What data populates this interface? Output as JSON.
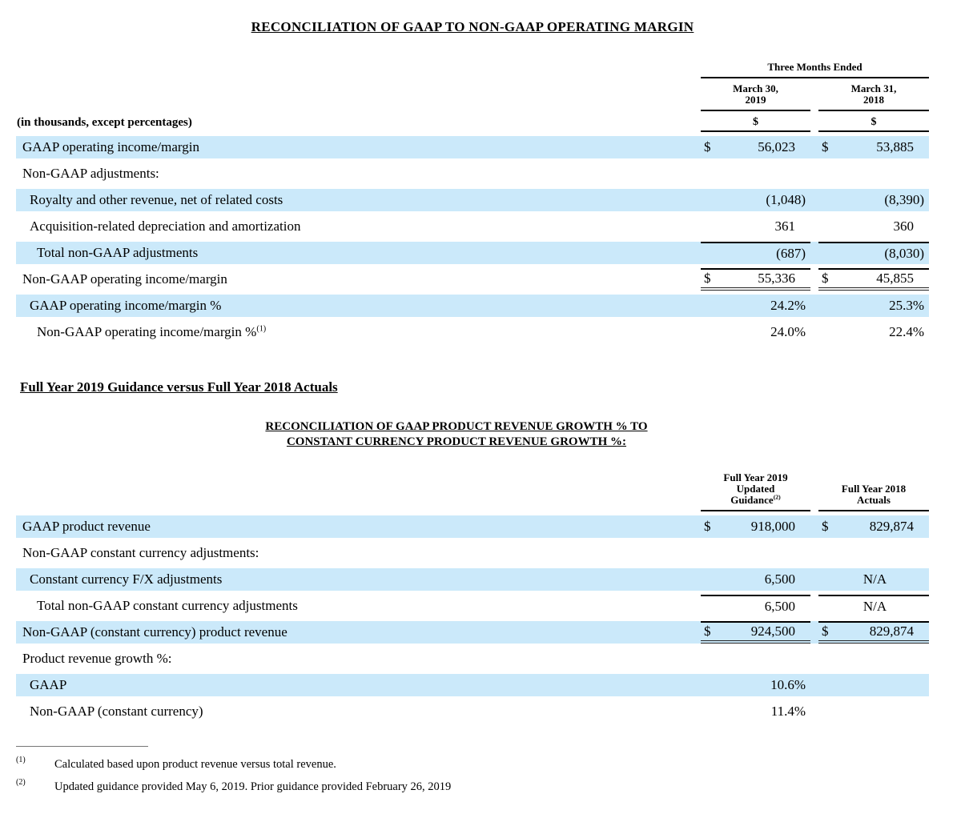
{
  "colors": {
    "highlight": "#cbe9fa",
    "rule": "#000000"
  },
  "doc": {
    "title": "RECONCILIATION OF GAAP TO NON-GAAP OPERATING MARGIN",
    "section_heading": "Full Year 2019 Guidance versus Full Year 2018 Actuals",
    "table2_title_line1": "RECONCILIATION OF GAAP PRODUCT REVENUE GROWTH % TO",
    "table2_title_line2": "CONSTANT CURRENCY PRODUCT REVENUE GROWTH %:"
  },
  "table1": {
    "group_header": "Three Months Ended",
    "left_note": "(in thousands, except percentages)",
    "currency_header": [
      "$",
      "$"
    ],
    "columns": [
      {
        "lines": [
          "March 30,",
          "2019"
        ]
      },
      {
        "lines": [
          "March 31,",
          "2018"
        ]
      }
    ],
    "rows": [
      {
        "label": "GAAP operating income/margin",
        "indent": 0,
        "highlight": true,
        "dollars": [
          "$",
          "$"
        ],
        "values": [
          "56,023",
          "53,885"
        ]
      },
      {
        "label": "Non-GAAP adjustments:",
        "indent": 0,
        "highlight": false
      },
      {
        "label": "Royalty and other revenue, net of related costs",
        "indent": 1,
        "highlight": true,
        "values": [
          "(1,048)",
          "(8,390)"
        ]
      },
      {
        "label": "Acquisition-related depreciation and amortization",
        "indent": 1,
        "highlight": false,
        "values": [
          "361",
          "360"
        ]
      },
      {
        "label": "Total non-GAAP adjustments",
        "indent": 2,
        "highlight": true,
        "border": "top",
        "values": [
          "(687)",
          "(8,030)"
        ]
      },
      {
        "label": "Non-GAAP operating income/margin",
        "indent": 0,
        "highlight": false,
        "border": "top-double",
        "dollars": [
          "$",
          "$"
        ],
        "values": [
          "55,336",
          "45,855"
        ]
      },
      {
        "label": "GAAP operating income/margin %",
        "indent": 1,
        "highlight": true,
        "values": [
          "24.2%",
          "25.3%"
        ]
      },
      {
        "label": "Non-GAAP operating income/margin %",
        "sup": "(1)",
        "indent": 2,
        "highlight": false,
        "values": [
          "24.0%",
          "22.4%"
        ]
      }
    ]
  },
  "table2": {
    "columns": [
      {
        "lines": [
          "Full Year 2019",
          "Updated",
          "Guidance"
        ],
        "sup": "(2)"
      },
      {
        "lines": [
          "Full Year 2018",
          "Actuals"
        ]
      }
    ],
    "rows": [
      {
        "label": "GAAP product revenue",
        "indent": 0,
        "highlight": true,
        "dollars": [
          "$",
          "$"
        ],
        "values": [
          "918,000",
          "829,874"
        ]
      },
      {
        "label": "Non-GAAP constant currency adjustments:",
        "indent": 0,
        "highlight": false
      },
      {
        "label": "Constant currency F/X adjustments",
        "indent": 1,
        "highlight": true,
        "values": [
          "6,500",
          "N/A"
        ]
      },
      {
        "label": "Total non-GAAP constant currency adjustments",
        "indent": 2,
        "highlight": false,
        "border": "top",
        "values": [
          "6,500",
          "N/A"
        ]
      },
      {
        "label": "Non-GAAP (constant currency) product revenue",
        "indent": 0,
        "highlight": true,
        "border": "top-double",
        "dollars": [
          "$",
          "$"
        ],
        "values": [
          "924,500",
          "829,874"
        ]
      },
      {
        "label": "Product revenue growth %:",
        "indent": 0,
        "highlight": false
      },
      {
        "label": "GAAP",
        "indent": 1,
        "highlight": true,
        "values": [
          "10.6%",
          ""
        ]
      },
      {
        "label": "Non-GAAP (constant currency)",
        "indent": 1,
        "highlight": false,
        "values": [
          "11.4%",
          ""
        ]
      }
    ]
  },
  "footnotes": [
    {
      "marker": "(1)",
      "text": "Calculated based upon product revenue versus total revenue."
    },
    {
      "marker": "(2)",
      "text": "Updated guidance provided May 6, 2019. Prior guidance provided February 26, 2019"
    }
  ]
}
